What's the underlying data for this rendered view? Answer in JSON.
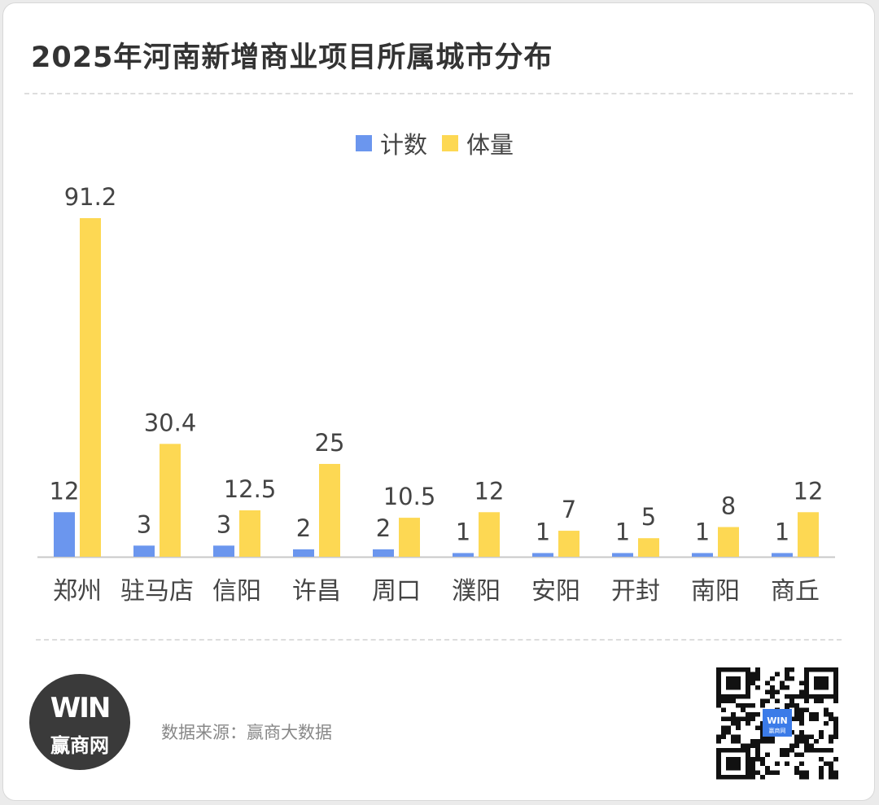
{
  "title": "2025年河南新增商业项目所属城市分布",
  "source": "数据来源：赢商大数据",
  "logo": {
    "mark": "WIN",
    "text": "赢商网"
  },
  "qr": {
    "center_mark": "WIN",
    "center_text": "赢商网"
  },
  "colors": {
    "count": "#6b96ee",
    "volume": "#fdd853",
    "axis": "#c8c8c8",
    "label": "#444444"
  },
  "chart_data": {
    "type": "bar",
    "categories": [
      "郑州",
      "驻马店",
      "信阳",
      "许昌",
      "周口",
      "濮阳",
      "安阳",
      "开封",
      "南阳",
      "商丘"
    ],
    "series": [
      {
        "name": "计数",
        "values": [
          12,
          3,
          3,
          2,
          2,
          1,
          1,
          1,
          1,
          1
        ]
      },
      {
        "name": "体量",
        "values": [
          91.2,
          30.4,
          12.5,
          25,
          10.5,
          12,
          7,
          5,
          8,
          12
        ]
      }
    ],
    "title": "2025年河南新增商业项目所属城市分布",
    "legend": "top",
    "ylim": [
      0,
      100
    ],
    "grid": false
  }
}
